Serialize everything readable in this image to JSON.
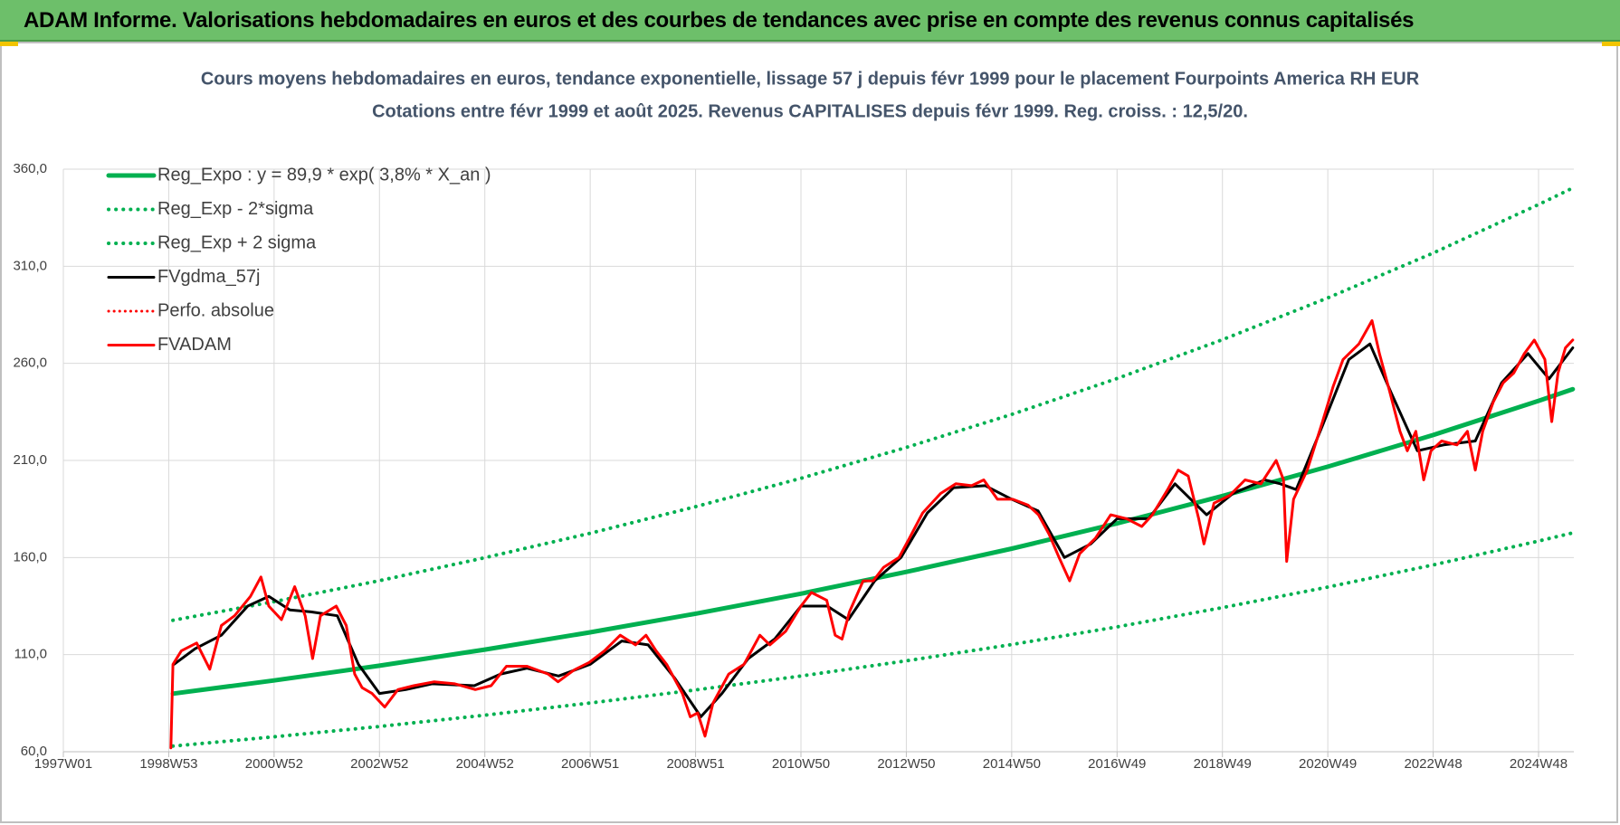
{
  "header": {
    "title": "ADAM Informe. Valorisations hebdomadaires en euros et des courbes de tendances avec prise en compte des revenus connus capitalisés"
  },
  "chart_data": {
    "type": "line",
    "title": "Cours moyens hebdomadaires en euros, tendance exponentielle, lissage 57 j depuis févr 1999 pour le placement Fourpoints America RH EUR",
    "subtitle": "Cotations entre févr 1999 et août 2025. Revenus CAPITALISES depuis févr 1999. Reg. croiss. : 12,5/20.",
    "xlim": [
      1997,
      2025.67
    ],
    "xticks": [
      {
        "value": 1997,
        "label": "1997W01"
      },
      {
        "value": 1999,
        "label": "1998W53"
      },
      {
        "value": 2001,
        "label": "2000W52"
      },
      {
        "value": 2003,
        "label": "2002W52"
      },
      {
        "value": 2005,
        "label": "2004W52"
      },
      {
        "value": 2007,
        "label": "2006W51"
      },
      {
        "value": 2009,
        "label": "2008W51"
      },
      {
        "value": 2011,
        "label": "2010W50"
      },
      {
        "value": 2013,
        "label": "2012W50"
      },
      {
        "value": 2015,
        "label": "2014W50"
      },
      {
        "value": 2017,
        "label": "2016W49"
      },
      {
        "value": 2019,
        "label": "2018W49"
      },
      {
        "value": 2021,
        "label": "2020W49"
      },
      {
        "value": 2023,
        "label": "2022W48"
      },
      {
        "value": 2025,
        "label": "2024W48"
      }
    ],
    "ylim": [
      60,
      360
    ],
    "yticks": [
      {
        "value": 60,
        "label": "60,0"
      },
      {
        "value": 110,
        "label": "110,0"
      },
      {
        "value": 160,
        "label": "160,0"
      },
      {
        "value": 210,
        "label": "210,0"
      },
      {
        "value": 260,
        "label": "260,0"
      },
      {
        "value": 310,
        "label": "310,0"
      },
      {
        "value": 360,
        "label": "360,0"
      }
    ],
    "grid": true,
    "legend": "top-left",
    "series": [
      {
        "name": "Reg_Expo : y = 89,9 * exp( 3,8% *  X_an )",
        "color": "#00b050",
        "dash": "solid",
        "width": 5,
        "x": [
          1999.08,
          2001,
          2003,
          2005,
          2007,
          2009,
          2011,
          2013,
          2015,
          2017,
          2019,
          2021,
          2023,
          2025,
          2025.65
        ],
        "values": [
          89.9,
          96.7,
          104.3,
          112.6,
          121.5,
          131.1,
          141.4,
          152.6,
          164.6,
          177.6,
          191.7,
          206.8,
          223.1,
          240.7,
          246.7
        ]
      },
      {
        "name": "Reg_Exp - 2*sigma",
        "color": "#00b050",
        "dash": "dotted",
        "width": 4,
        "x": [
          1999.08,
          2001,
          2003,
          2005,
          2007,
          2009,
          2011,
          2013,
          2015,
          2017,
          2019,
          2021,
          2023,
          2025,
          2025.65
        ],
        "values": [
          62.9,
          67.7,
          73.0,
          78.8,
          85.1,
          91.8,
          99.0,
          106.8,
          115.2,
          124.3,
          134.2,
          144.8,
          156.2,
          168.5,
          172.7
        ]
      },
      {
        "name": "Reg_Exp + 2 sigma",
        "color": "#00b050",
        "dash": "dotted",
        "width": 4,
        "x": [
          1999.08,
          2001,
          2003,
          2005,
          2007,
          2009,
          2011,
          2013,
          2015,
          2017,
          2019,
          2021,
          2023,
          2025,
          2025.65
        ],
        "values": [
          127.7,
          137.3,
          148.1,
          159.9,
          172.5,
          186.2,
          200.8,
          216.7,
          233.7,
          252.2,
          272.2,
          293.7,
          316.8,
          341.8,
          350.3
        ]
      },
      {
        "name": "FVgdma_57j",
        "color": "#000000",
        "dash": "solid",
        "width": 3,
        "x": [
          1999.1,
          1999.5,
          2000.0,
          2000.5,
          2000.9,
          2001.3,
          2001.7,
          2002.2,
          2002.6,
          2003.0,
          2003.5,
          2004.0,
          2004.8,
          2005.3,
          2005.8,
          2006.4,
          2007.0,
          2007.6,
          2008.1,
          2008.6,
          2009.1,
          2009.5,
          2010.0,
          2010.5,
          2011.0,
          2011.5,
          2011.9,
          2012.4,
          2012.9,
          2013.4,
          2013.9,
          2014.5,
          2015.0,
          2015.5,
          2016.0,
          2016.5,
          2017.0,
          2017.6,
          2018.1,
          2018.7,
          2019.2,
          2019.8,
          2020.1,
          2020.4,
          2020.9,
          2021.4,
          2021.8,
          2022.2,
          2022.7,
          2023.2,
          2023.8,
          2024.3,
          2024.8,
          2025.2,
          2025.65
        ],
        "values": [
          105,
          113,
          120,
          135,
          140,
          133,
          132,
          130,
          105,
          90,
          92,
          95,
          94,
          100,
          103,
          99,
          105,
          117,
          115,
          98,
          78,
          90,
          108,
          118,
          135,
          135,
          128,
          148,
          160,
          183,
          196,
          197,
          190,
          184,
          160,
          167,
          180,
          180,
          198,
          182,
          193,
          200,
          198,
          195,
          228,
          262,
          270,
          245,
          215,
          218,
          220,
          250,
          265,
          252,
          268
        ]
      },
      {
        "name": "Perfo. absolue",
        "color": "#ff0000",
        "dash": "dotted",
        "width": 3
      },
      {
        "name": "FVADAM",
        "color": "#ff0000",
        "dash": "solid",
        "width": 3,
        "x": [
          1999.04,
          1999.08,
          1999.24,
          1999.53,
          1999.78,
          2000.0,
          2000.25,
          2000.55,
          2000.75,
          2000.9,
          2001.14,
          2001.39,
          2001.59,
          2001.73,
          2001.88,
          2002.18,
          2002.37,
          2002.53,
          2002.67,
          2002.86,
          2003.1,
          2003.35,
          2003.65,
          2004.04,
          2004.43,
          2004.82,
          2005.12,
          2005.41,
          2005.8,
          2006.2,
          2006.39,
          2006.69,
          2006.98,
          2007.27,
          2007.57,
          2007.86,
          2008.06,
          2008.25,
          2008.45,
          2008.75,
          2008.9,
          2009.04,
          2009.18,
          2009.33,
          2009.63,
          2009.92,
          2010.22,
          2010.41,
          2010.71,
          2011.0,
          2011.2,
          2011.49,
          2011.65,
          2011.78,
          2011.92,
          2012.18,
          2012.37,
          2012.57,
          2012.86,
          2013.06,
          2013.31,
          2013.65,
          2013.94,
          2014.24,
          2014.47,
          2014.73,
          2015.02,
          2015.31,
          2015.51,
          2015.71,
          2015.9,
          2016.1,
          2016.29,
          2016.59,
          2016.88,
          2017.18,
          2017.47,
          2017.67,
          2017.96,
          2018.16,
          2018.35,
          2018.55,
          2018.65,
          2018.84,
          2019.14,
          2019.43,
          2019.73,
          2020.02,
          2020.16,
          2020.22,
          2020.35,
          2020.61,
          2020.9,
          2021.1,
          2021.29,
          2021.59,
          2021.84,
          2021.98,
          2022.18,
          2022.37,
          2022.51,
          2022.67,
          2022.82,
          2022.96,
          2023.16,
          2023.45,
          2023.65,
          2023.8,
          2023.94,
          2024.14,
          2024.33,
          2024.53,
          2024.73,
          2024.92,
          2025.12,
          2025.25,
          2025.37,
          2025.51,
          2025.65
        ],
        "values": [
          62,
          105,
          112,
          116,
          102.5,
          125,
          130,
          140,
          150,
          135,
          128,
          145,
          130,
          108,
          130,
          135,
          125,
          100,
          93,
          90,
          83,
          92,
          94,
          96,
          95,
          92,
          94,
          104,
          104,
          100,
          96,
          102,
          106,
          112,
          120,
          115,
          120,
          112,
          105,
          90,
          78,
          80,
          68,
          85,
          100,
          105,
          120,
          115,
          122,
          135,
          142,
          138,
          120,
          118,
          132,
          148,
          148,
          155,
          160,
          170,
          183,
          193,
          198,
          197,
          200,
          190,
          190,
          187,
          182,
          172,
          160,
          148,
          162,
          170,
          182,
          180,
          176,
          182,
          195,
          205,
          202,
          180,
          167,
          188,
          192,
          200,
          198,
          210,
          200,
          158,
          190,
          205,
          230,
          248,
          262,
          270,
          282,
          265,
          245,
          225,
          215,
          225,
          200,
          215,
          220,
          218,
          225,
          205,
          225,
          240,
          250,
          255,
          265,
          272,
          262,
          230,
          255,
          268,
          272
        ]
      }
    ]
  }
}
